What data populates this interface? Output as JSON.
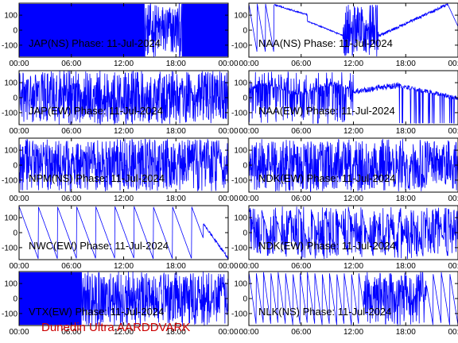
{
  "footer": {
    "text": "Dunedin Ultra AARDDVARK",
    "color": "#cc0000"
  },
  "trace_color": "#0000ff",
  "chart_data": [
    {
      "type": "line",
      "title": "JAP(NS) Phase: 11-Jul-2024",
      "xlabel": "",
      "ylabel": "",
      "x_ticks": [
        "00:00",
        "06:00",
        "12:00",
        "18:00",
        "00:00"
      ],
      "y_ticks": [
        100,
        0,
        -100
      ],
      "ylim": [
        -180,
        180
      ],
      "pattern": "dense",
      "dense_until": 0.6,
      "burst_end": 0.78
    },
    {
      "type": "line",
      "title": "NAA(NS) Phase: 11-Jul-2024",
      "xlabel": "",
      "ylabel": "",
      "x_ticks": [
        "00:00",
        "06:00",
        "12:00",
        "18:00",
        "00:00"
      ],
      "y_ticks": [
        100,
        0,
        -100
      ],
      "ylim": [
        -180,
        180
      ],
      "pattern": "naa"
    },
    {
      "type": "line",
      "title": "JAP(EW) Phase: 11-Jul-2024",
      "xlabel": "",
      "ylabel": "",
      "x_ticks": [
        "00:00",
        "06:00",
        "12:00",
        "18:00",
        "00:00"
      ],
      "y_ticks": [
        100,
        0,
        -100
      ],
      "ylim": [
        -180,
        180
      ],
      "pattern": "dense",
      "dense_until": 0.0,
      "burst_end": 1.0
    },
    {
      "type": "line",
      "title": "NAA(EW) Phase: 11-Jul-2024",
      "xlabel": "",
      "ylabel": "",
      "x_ticks": [
        "00:00",
        "06:00",
        "12:00",
        "18:00",
        "00:00"
      ],
      "y_ticks": [
        100,
        0,
        -100
      ],
      "ylim": [
        -180,
        180
      ],
      "pattern": "naa_ew"
    },
    {
      "type": "line",
      "title": "NPM(NS) Phase: 11-Jul-2024",
      "xlabel": "",
      "ylabel": "",
      "x_ticks": [
        "00:00",
        "06:00",
        "12:00",
        "18:00",
        "00:00"
      ],
      "y_ticks": [
        100,
        0,
        -100
      ],
      "ylim": [
        -180,
        180
      ],
      "pattern": "noisy"
    },
    {
      "type": "line",
      "title": "NDK(EW) Phase: 11-Jul-2024",
      "xlabel": "",
      "ylabel": "",
      "x_ticks": [
        "00:00",
        "06:00",
        "12:00",
        "18:00",
        "00:00"
      ],
      "y_ticks": [
        100,
        0,
        -100
      ],
      "ylim": [
        -180,
        180
      ],
      "pattern": "noisy"
    },
    {
      "type": "line",
      "title": "NWC(EW) Phase: 11-Jul-2024",
      "xlabel": "",
      "ylabel": "",
      "x_ticks": [
        "00:00",
        "06:00",
        "12:00",
        "18:00",
        "00:00"
      ],
      "y_ticks": [
        100,
        0,
        -100
      ],
      "ylim": [
        -180,
        180
      ],
      "pattern": "saw",
      "saw_period_hours": 2.2
    },
    {
      "type": "line",
      "title": "NDK(EW) Phase: 11-Jul-2024",
      "xlabel": "",
      "ylabel": "",
      "x_ticks": [
        "00:00",
        "06:00",
        "12:00",
        "18:00",
        "00:00"
      ],
      "y_ticks": [
        100,
        0,
        -100
      ],
      "ylim": [
        -180,
        180
      ],
      "pattern": "noisy_saw"
    },
    {
      "type": "line",
      "title": "VTX(EW) Phase: 11-Jul-2024",
      "xlabel": "",
      "ylabel": "",
      "x_ticks": [
        "00:00",
        "06:00",
        "12:00",
        "18:00",
        "00:00"
      ],
      "y_ticks": [
        100,
        0,
        -100
      ],
      "ylim": [
        -180,
        180
      ],
      "pattern": "dense",
      "dense_until": 0.3,
      "burst_end": 1.0
    },
    {
      "type": "line",
      "title": "NLK(NS) Phase: 11-Jul-2024",
      "xlabel": "",
      "ylabel": "",
      "x_ticks": [
        "00:00",
        "06:00",
        "12:00",
        "18:00",
        "00:00"
      ],
      "y_ticks": [
        100,
        0,
        -100
      ],
      "ylim": [
        -180,
        180
      ],
      "pattern": "nlk"
    }
  ]
}
